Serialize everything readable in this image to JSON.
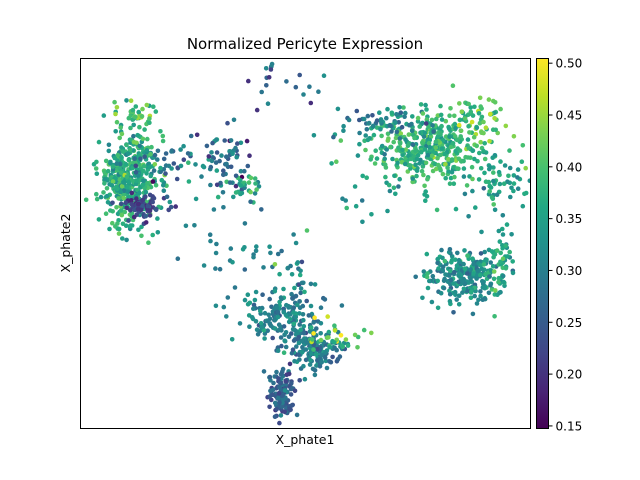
{
  "chart_data": {
    "type": "scatter",
    "title": "Normalized Pericyte Expression",
    "xlabel": "X_phate1",
    "ylabel": "X_phate2",
    "xlim": [
      0,
      100
    ],
    "ylim": [
      0,
      100
    ],
    "colorbar": {
      "cmap": "viridis",
      "range": [
        0.148,
        0.505
      ],
      "ticks": [
        "0.15",
        "0.20",
        "0.25",
        "0.30",
        "0.35",
        "0.40",
        "0.45",
        "0.50"
      ],
      "tick_values": [
        0.15,
        0.2,
        0.25,
        0.3,
        0.35,
        0.4,
        0.45,
        0.5
      ]
    },
    "clusters": [
      {
        "x": 11,
        "y": 67,
        "sx": 3.2,
        "sy": 6.0,
        "n": 420,
        "mean": 0.37,
        "sd": 0.03,
        "seed": 11
      },
      {
        "x": 14,
        "y": 60,
        "sx": 2.2,
        "sy": 1.8,
        "n": 70,
        "mean": 0.22,
        "sd": 0.025,
        "seed": 12
      },
      {
        "x": 12,
        "y": 84,
        "sx": 2.5,
        "sy": 3.0,
        "n": 40,
        "mean": 0.4,
        "sd": 0.03,
        "seed": 13
      },
      {
        "x": 22,
        "y": 72,
        "sx": 7.0,
        "sy": 4.0,
        "n": 60,
        "mean": 0.3,
        "sd": 0.05,
        "seed": 14
      },
      {
        "x": 33,
        "y": 73,
        "sx": 3.5,
        "sy": 4.0,
        "n": 50,
        "mean": 0.28,
        "sd": 0.05,
        "seed": 15
      },
      {
        "x": 37,
        "y": 65,
        "sx": 2.0,
        "sy": 1.6,
        "n": 25,
        "mean": 0.36,
        "sd": 0.03,
        "seed": 16
      },
      {
        "x": 78,
        "y": 76,
        "sx": 6.5,
        "sy": 5.0,
        "n": 420,
        "mean": 0.38,
        "sd": 0.03,
        "seed": 21
      },
      {
        "x": 66,
        "y": 82,
        "sx": 5.0,
        "sy": 2.0,
        "n": 60,
        "mean": 0.3,
        "sd": 0.03,
        "seed": 22
      },
      {
        "x": 88,
        "y": 83,
        "sx": 3.0,
        "sy": 2.5,
        "n": 50,
        "mean": 0.41,
        "sd": 0.03,
        "seed": 23
      },
      {
        "x": 92,
        "y": 65,
        "sx": 3.5,
        "sy": 5.0,
        "n": 60,
        "mean": 0.35,
        "sd": 0.03,
        "seed": 24
      },
      {
        "x": 85,
        "y": 41,
        "sx": 4.0,
        "sy": 3.5,
        "n": 230,
        "mean": 0.32,
        "sd": 0.03,
        "seed": 25
      },
      {
        "x": 93,
        "y": 45,
        "sx": 2.0,
        "sy": 4.5,
        "n": 60,
        "mean": 0.36,
        "sd": 0.03,
        "seed": 26
      },
      {
        "x": 45,
        "y": 29,
        "sx": 4.5,
        "sy": 4.0,
        "n": 160,
        "mean": 0.3,
        "sd": 0.03,
        "seed": 31
      },
      {
        "x": 52,
        "y": 21,
        "sx": 3.0,
        "sy": 2.8,
        "n": 150,
        "mean": 0.3,
        "sd": 0.04,
        "seed": 32
      },
      {
        "x": 45,
        "y": 9,
        "sx": 1.4,
        "sy": 3.2,
        "n": 120,
        "mean": 0.26,
        "sd": 0.03,
        "seed": 33
      },
      {
        "x": 57,
        "y": 25,
        "sx": 4.5,
        "sy": 2.5,
        "n": 25,
        "mean": 0.42,
        "sd": 0.05,
        "seed": 34
      },
      {
        "x": 35,
        "y": 48,
        "sx": 6.0,
        "sy": 10.0,
        "n": 40,
        "mean": 0.3,
        "sd": 0.03,
        "seed": 35
      },
      {
        "x": 48,
        "y": 38,
        "sx": 2.0,
        "sy": 8.0,
        "n": 35,
        "mean": 0.33,
        "sd": 0.04,
        "seed": 36
      },
      {
        "x": 48,
        "y": 92,
        "sx": 5.0,
        "sy": 3.0,
        "n": 20,
        "mean": 0.24,
        "sd": 0.05,
        "seed": 37
      },
      {
        "x": 65,
        "y": 65,
        "sx": 5.0,
        "sy": 5.0,
        "n": 20,
        "mean": 0.34,
        "sd": 0.04,
        "seed": 38
      }
    ]
  }
}
